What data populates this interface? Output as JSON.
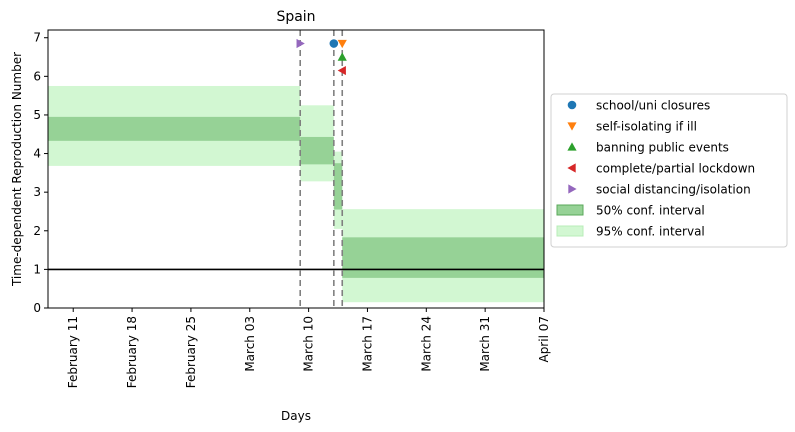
{
  "chart_data": {
    "type": "area",
    "title": "Spain",
    "xlabel": "Days",
    "ylabel": "Time-dependent Reproduction Number",
    "x_range": [
      "2020-02-08",
      "2020-04-07"
    ],
    "ylim": [
      0,
      7.2
    ],
    "yticks": [
      0,
      1,
      2,
      3,
      4,
      5,
      6,
      7
    ],
    "xticks": [
      {
        "date": "2020-02-11",
        "label": "February 11"
      },
      {
        "date": "2020-02-18",
        "label": "February 18"
      },
      {
        "date": "2020-02-25",
        "label": "February 25"
      },
      {
        "date": "2020-03-03",
        "label": "March 03"
      },
      {
        "date": "2020-03-10",
        "label": "March 10"
      },
      {
        "date": "2020-03-17",
        "label": "March 17"
      },
      {
        "date": "2020-03-24",
        "label": "March 24"
      },
      {
        "date": "2020-03-31",
        "label": "March 31"
      },
      {
        "date": "2020-04-07",
        "label": "April 07"
      }
    ],
    "reference_line": {
      "y": 1,
      "color": "#000000"
    },
    "segments": [
      {
        "start": "2020-02-08",
        "end": "2020-03-09",
        "ci50": [
          4.33,
          4.95
        ],
        "ci95": [
          3.68,
          5.75
        ]
      },
      {
        "start": "2020-03-09",
        "end": "2020-03-13",
        "ci50": [
          3.72,
          4.43
        ],
        "ci95": [
          3.28,
          5.25
        ]
      },
      {
        "start": "2020-03-13",
        "end": "2020-03-14",
        "ci50": [
          2.55,
          3.75
        ],
        "ci95": [
          2.05,
          4.05
        ]
      },
      {
        "start": "2020-03-14",
        "end": "2020-04-07",
        "ci50": [
          0.78,
          1.83
        ],
        "ci95": [
          0.15,
          2.56
        ]
      }
    ],
    "interventions": [
      {
        "name": "school/uni closures",
        "date": "2020-03-13",
        "y": 6.85,
        "marker": "circle",
        "color": "#1f77b4"
      },
      {
        "name": "self-isolating if ill",
        "date": "2020-03-14",
        "y": 6.85,
        "marker": "triangle-down",
        "color": "#ff7f0e"
      },
      {
        "name": "banning public events",
        "date": "2020-03-14",
        "y": 6.5,
        "marker": "triangle-up",
        "color": "#2ca02c"
      },
      {
        "name": "complete/partial lockdown",
        "date": "2020-03-14",
        "y": 6.15,
        "marker": "triangle-left",
        "color": "#d62728"
      },
      {
        "name": "social distancing/isolation",
        "date": "2020-03-09",
        "y": 6.85,
        "marker": "triangle-right",
        "color": "#9467bd"
      }
    ],
    "vlines": [
      "2020-03-09",
      "2020-03-13",
      "2020-03-14"
    ],
    "legend": {
      "placement": "right",
      "entries": [
        {
          "label": "school/uni closures",
          "kind": "marker",
          "marker": "circle",
          "color": "#1f77b4"
        },
        {
          "label": "self-isolating if ill",
          "kind": "marker",
          "marker": "triangle-down",
          "color": "#ff7f0e"
        },
        {
          "label": "banning public events",
          "kind": "marker",
          "marker": "triangle-up",
          "color": "#2ca02c"
        },
        {
          "label": "complete/partial lockdown",
          "kind": "marker",
          "marker": "triangle-left",
          "color": "#d62728"
        },
        {
          "label": "social distancing/isolation",
          "kind": "marker",
          "marker": "triangle-right",
          "color": "#9467bd"
        },
        {
          "label": "50% conf. interval",
          "kind": "patch",
          "color": "#96d296",
          "edge": "#5aa85a"
        },
        {
          "label": "95% conf. interval",
          "kind": "patch",
          "color": "#d2f7d2",
          "edge": "#b8ecb8"
        }
      ]
    },
    "colors": {
      "ci50": "#96d296",
      "ci95": "#d2f7d2",
      "vline": "#808080"
    }
  }
}
